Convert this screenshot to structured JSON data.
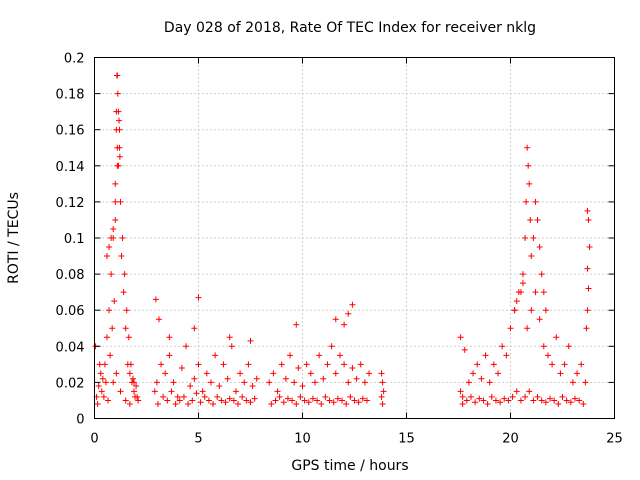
{
  "chart_data": {
    "type": "scatter",
    "title": "Day 028 of 2018, Rate Of TEC Index for receiver nklg",
    "xlabel": "GPS time / hours",
    "ylabel": "ROTI / TECUs",
    "xlim": [
      0,
      25
    ],
    "ylim": [
      0,
      0.2
    ],
    "xticks": [
      0,
      5,
      10,
      15,
      20,
      25
    ],
    "yticks": [
      0,
      0.02,
      0.04,
      0.06,
      0.08,
      0.1,
      0.12,
      0.14,
      0.16,
      0.18,
      0.2
    ],
    "xtick_labels": [
      "0",
      "5",
      "10",
      "15",
      "20",
      "25"
    ],
    "ytick_labels": [
      "0",
      "0.02",
      "0.04",
      "0.06",
      "0.08",
      "0.1",
      "0.12",
      "0.14",
      "0.16",
      "0.18",
      "0.2"
    ],
    "grid": true,
    "marker": "+",
    "color": "#ff0000",
    "series": [
      {
        "name": "ROTI",
        "x": [
          0.1,
          0.2,
          0.3,
          0.4,
          0.5,
          0.6,
          0.7,
          0.8,
          0.9,
          1.0,
          1.05,
          1.1,
          1.15,
          1.2,
          1.25,
          1.3,
          1.4,
          1.5,
          1.6,
          1.7,
          1.8,
          1.9,
          2.0,
          2.1,
          0.15,
          0.35,
          0.55,
          0.75,
          0.85,
          0.95,
          1.0,
          1.1,
          1.2,
          1.35,
          1.45,
          1.55,
          1.65,
          1.75,
          1.85,
          1.95,
          0.05,
          0.25,
          0.45,
          0.65,
          0.9,
          1.05,
          1.25,
          1.5,
          1.7,
          1.9,
          2.05,
          0.6,
          0.7,
          0.8,
          0.9,
          1.0,
          1.1,
          1.15,
          1.05,
          1.12,
          1.18,
          1.22,
          1.08,
          2.9,
          3.0,
          3.2,
          3.4,
          3.6,
          3.8,
          4.0,
          4.2,
          4.4,
          4.6,
          4.8,
          5.0,
          5.2,
          5.4,
          5.6,
          5.8,
          6.0,
          6.2,
          6.4,
          6.6,
          6.8,
          7.0,
          7.2,
          7.4,
          7.6,
          7.8,
          3.05,
          3.3,
          3.5,
          3.7,
          3.9,
          4.1,
          4.3,
          4.5,
          4.7,
          4.9,
          5.1,
          5.3,
          5.5,
          5.7,
          5.9,
          6.1,
          6.3,
          6.5,
          6.7,
          6.9,
          7.1,
          7.3,
          7.5,
          7.7,
          2.95,
          3.1,
          3.6,
          4.8,
          5.0,
          6.5,
          7.5,
          8.4,
          8.6,
          8.8,
          9.0,
          9.2,
          9.4,
          9.6,
          9.8,
          10.0,
          10.2,
          10.4,
          10.6,
          10.8,
          11.0,
          11.2,
          11.4,
          11.6,
          11.8,
          12.0,
          12.2,
          12.4,
          12.6,
          12.8,
          13.0,
          13.2,
          8.5,
          8.7,
          8.9,
          9.1,
          9.3,
          9.5,
          9.7,
          9.9,
          10.1,
          10.3,
          10.5,
          10.7,
          10.9,
          11.1,
          11.3,
          11.5,
          11.7,
          11.9,
          12.1,
          12.3,
          12.5,
          12.7,
          12.9,
          13.1,
          9.7,
          11.6,
          12.0,
          12.2,
          12.4,
          13.8,
          13.85,
          13.9,
          13.8,
          13.85,
          17.6,
          17.8,
          18.0,
          18.2,
          18.4,
          18.6,
          18.8,
          19.0,
          19.2,
          19.4,
          19.6,
          19.8,
          20.0,
          20.2,
          20.4,
          20.6,
          20.8,
          21.0,
          21.2,
          21.4,
          21.6,
          21.8,
          22.0,
          22.2,
          22.4,
          22.6,
          22.8,
          23.0,
          23.2,
          23.4,
          23.6,
          17.7,
          17.9,
          18.1,
          18.3,
          18.5,
          18.7,
          18.9,
          19.1,
          19.3,
          19.5,
          19.7,
          19.9,
          20.1,
          20.3,
          20.5,
          20.7,
          20.9,
          21.1,
          21.3,
          21.5,
          21.7,
          21.9,
          22.1,
          22.3,
          22.5,
          22.7,
          22.9,
          23.1,
          23.3,
          23.5,
          20.7,
          20.75,
          20.8,
          20.85,
          20.9,
          20.95,
          21.0,
          21.1,
          21.2,
          21.3,
          21.4,
          21.5,
          21.6,
          21.7,
          20.6,
          20.5,
          20.3,
          20.2,
          23.7,
          23.75,
          23.8,
          23.7,
          23.75,
          23.7,
          23.65,
          17.6,
          17.7
        ],
        "y": [
          0.012,
          0.018,
          0.025,
          0.022,
          0.03,
          0.045,
          0.06,
          0.08,
          0.1,
          0.13,
          0.16,
          0.19,
          0.17,
          0.15,
          0.12,
          0.09,
          0.07,
          0.05,
          0.03,
          0.025,
          0.02,
          0.015,
          0.018,
          0.01,
          0.008,
          0.015,
          0.02,
          0.035,
          0.05,
          0.065,
          0.11,
          0.14,
          0.16,
          0.1,
          0.08,
          0.06,
          0.045,
          0.03,
          0.022,
          0.012,
          0.04,
          0.03,
          0.012,
          0.01,
          0.02,
          0.025,
          0.015,
          0.01,
          0.008,
          0.02,
          0.012,
          0.09,
          0.095,
          0.1,
          0.105,
          0.12,
          0.15,
          0.14,
          0.17,
          0.18,
          0.165,
          0.145,
          0.19,
          0.015,
          0.02,
          0.03,
          0.025,
          0.035,
          0.02,
          0.012,
          0.028,
          0.04,
          0.018,
          0.022,
          0.03,
          0.015,
          0.025,
          0.02,
          0.035,
          0.018,
          0.03,
          0.022,
          0.04,
          0.015,
          0.025,
          0.02,
          0.03,
          0.018,
          0.022,
          0.008,
          0.012,
          0.01,
          0.015,
          0.008,
          0.01,
          0.012,
          0.008,
          0.01,
          0.014,
          0.009,
          0.012,
          0.01,
          0.008,
          0.012,
          0.01,
          0.009,
          0.011,
          0.01,
          0.008,
          0.012,
          0.01,
          0.009,
          0.011,
          0.066,
          0.055,
          0.045,
          0.05,
          0.067,
          0.045,
          0.043,
          0.02,
          0.025,
          0.015,
          0.03,
          0.022,
          0.035,
          0.02,
          0.028,
          0.018,
          0.03,
          0.025,
          0.02,
          0.035,
          0.022,
          0.03,
          0.04,
          0.025,
          0.035,
          0.03,
          0.02,
          0.028,
          0.022,
          0.03,
          0.02,
          0.025,
          0.008,
          0.01,
          0.012,
          0.009,
          0.011,
          0.01,
          0.008,
          0.012,
          0.01,
          0.009,
          0.011,
          0.01,
          0.008,
          0.012,
          0.01,
          0.009,
          0.011,
          0.01,
          0.008,
          0.012,
          0.01,
          0.009,
          0.011,
          0.01,
          0.052,
          0.055,
          0.052,
          0.058,
          0.063,
          0.025,
          0.02,
          0.015,
          0.012,
          0.008,
          0.045,
          0.038,
          0.02,
          0.025,
          0.03,
          0.022,
          0.035,
          0.02,
          0.03,
          0.025,
          0.04,
          0.035,
          0.05,
          0.06,
          0.07,
          0.08,
          0.05,
          0.06,
          0.07,
          0.055,
          0.04,
          0.035,
          0.03,
          0.045,
          0.025,
          0.03,
          0.04,
          0.02,
          0.025,
          0.03,
          0.02,
          0.008,
          0.01,
          0.012,
          0.009,
          0.011,
          0.01,
          0.008,
          0.012,
          0.01,
          0.009,
          0.011,
          0.01,
          0.012,
          0.015,
          0.01,
          0.012,
          0.015,
          0.01,
          0.012,
          0.01,
          0.009,
          0.011,
          0.01,
          0.008,
          0.012,
          0.01,
          0.009,
          0.011,
          0.01,
          0.008,
          0.1,
          0.12,
          0.15,
          0.14,
          0.13,
          0.11,
          0.09,
          0.1,
          0.12,
          0.11,
          0.095,
          0.08,
          0.07,
          0.06,
          0.075,
          0.07,
          0.065,
          0.06,
          0.115,
          0.11,
          0.095,
          0.083,
          0.072,
          0.06,
          0.05,
          0.015,
          0.012
        ]
      }
    ]
  }
}
